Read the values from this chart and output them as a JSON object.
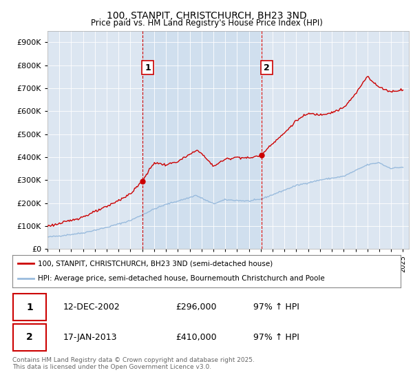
{
  "title": "100, STANPIT, CHRISTCHURCH, BH23 3ND",
  "subtitle": "Price paid vs. HM Land Registry's House Price Index (HPI)",
  "y_ticks": [
    0,
    100000,
    200000,
    300000,
    400000,
    500000,
    600000,
    700000,
    800000,
    900000
  ],
  "background_color": "#ffffff",
  "plot_bg_color": "#dce6f1",
  "shade_color": "#ccdded",
  "red_line_color": "#cc0000",
  "blue_line_color": "#99bbdd",
  "vline_color": "#cc0000",
  "marker1_year": 2003.0,
  "marker2_year": 2013.05,
  "marker1_price": 296000,
  "marker2_price": 410000,
  "legend_label_red": "100, STANPIT, CHRISTCHURCH, BH23 3ND (semi-detached house)",
  "legend_label_blue": "HPI: Average price, semi-detached house, Bournemouth Christchurch and Poole",
  "footer_text": "Contains HM Land Registry data © Crown copyright and database right 2025.\nThis data is licensed under the Open Government Licence v3.0.",
  "table_rows": [
    [
      "1",
      "12-DEC-2002",
      "£296,000",
      "97% ↑ HPI"
    ],
    [
      "2",
      "17-JAN-2013",
      "£410,000",
      "97% ↑ HPI"
    ]
  ]
}
